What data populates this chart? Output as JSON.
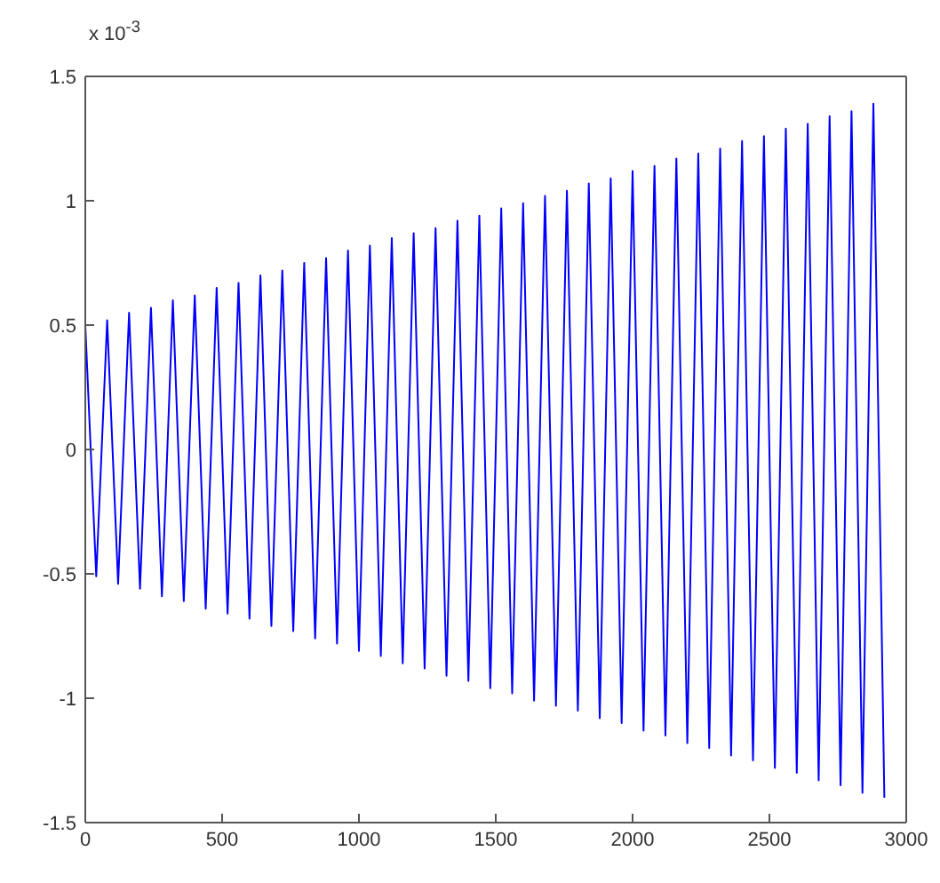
{
  "chart_data": {
    "type": "line",
    "color": "#0000ff",
    "line_style": "solid",
    "marker": "none",
    "grid": false,
    "annotations": [
      "x 10$^{-3}$"
    ],
    "x": [
      0,
      40,
      80,
      120,
      160,
      200,
      240,
      280,
      320,
      360,
      400,
      440,
      480,
      520,
      560,
      600,
      640,
      680,
      720,
      760,
      800,
      840,
      880,
      920,
      960,
      1000,
      1040,
      1080,
      1120,
      1160,
      1200,
      1240,
      1280,
      1320,
      1360,
      1400,
      1440,
      1480,
      1520,
      1560,
      1600,
      1640,
      1680,
      1720,
      1760,
      1800,
      1840,
      1880,
      1920,
      1960,
      2000,
      2040,
      2080,
      2120,
      2160,
      2200,
      2240,
      2280,
      2320,
      2360,
      2400,
      2440,
      2480,
      2520,
      2560,
      2600,
      2640,
      2680,
      2720,
      2760,
      2800,
      2840,
      2880,
      2920
    ],
    "values": [
      0.5,
      -0.51,
      0.52,
      -0.54,
      0.55,
      -0.56,
      0.57,
      -0.59,
      0.6,
      -0.61,
      0.62,
      -0.64,
      0.65,
      -0.66,
      0.67,
      -0.68,
      0.7,
      -0.71,
      0.72,
      -0.73,
      0.75,
      -0.76,
      0.77,
      -0.78,
      0.8,
      -0.81,
      0.82,
      -0.83,
      0.85,
      -0.86,
      0.87,
      -0.88,
      0.89,
      -0.91,
      0.92,
      -0.93,
      0.94,
      -0.96,
      0.97,
      -0.98,
      0.99,
      -1.01,
      1.02,
      -1.03,
      1.04,
      -1.05,
      1.07,
      -1.08,
      1.09,
      -1.1,
      1.12,
      -1.13,
      1.14,
      -1.15,
      1.17,
      -1.18,
      1.19,
      -1.2,
      1.21,
      -1.23,
      1.24,
      -1.25,
      1.26,
      -1.28,
      1.29,
      -1.3,
      1.31,
      -1.33,
      1.34,
      -1.35,
      1.36,
      -1.38,
      1.39,
      -1.4
    ],
    "xlim": [
      0,
      3000
    ],
    "xticks": [
      0,
      500,
      1000,
      1500,
      2000,
      2500,
      3000
    ],
    "ylim": [
      -1.5,
      1.5
    ],
    "yticks": [
      -1.5,
      -1,
      -0.5,
      0,
      0.5,
      1,
      1.5
    ]
  }
}
